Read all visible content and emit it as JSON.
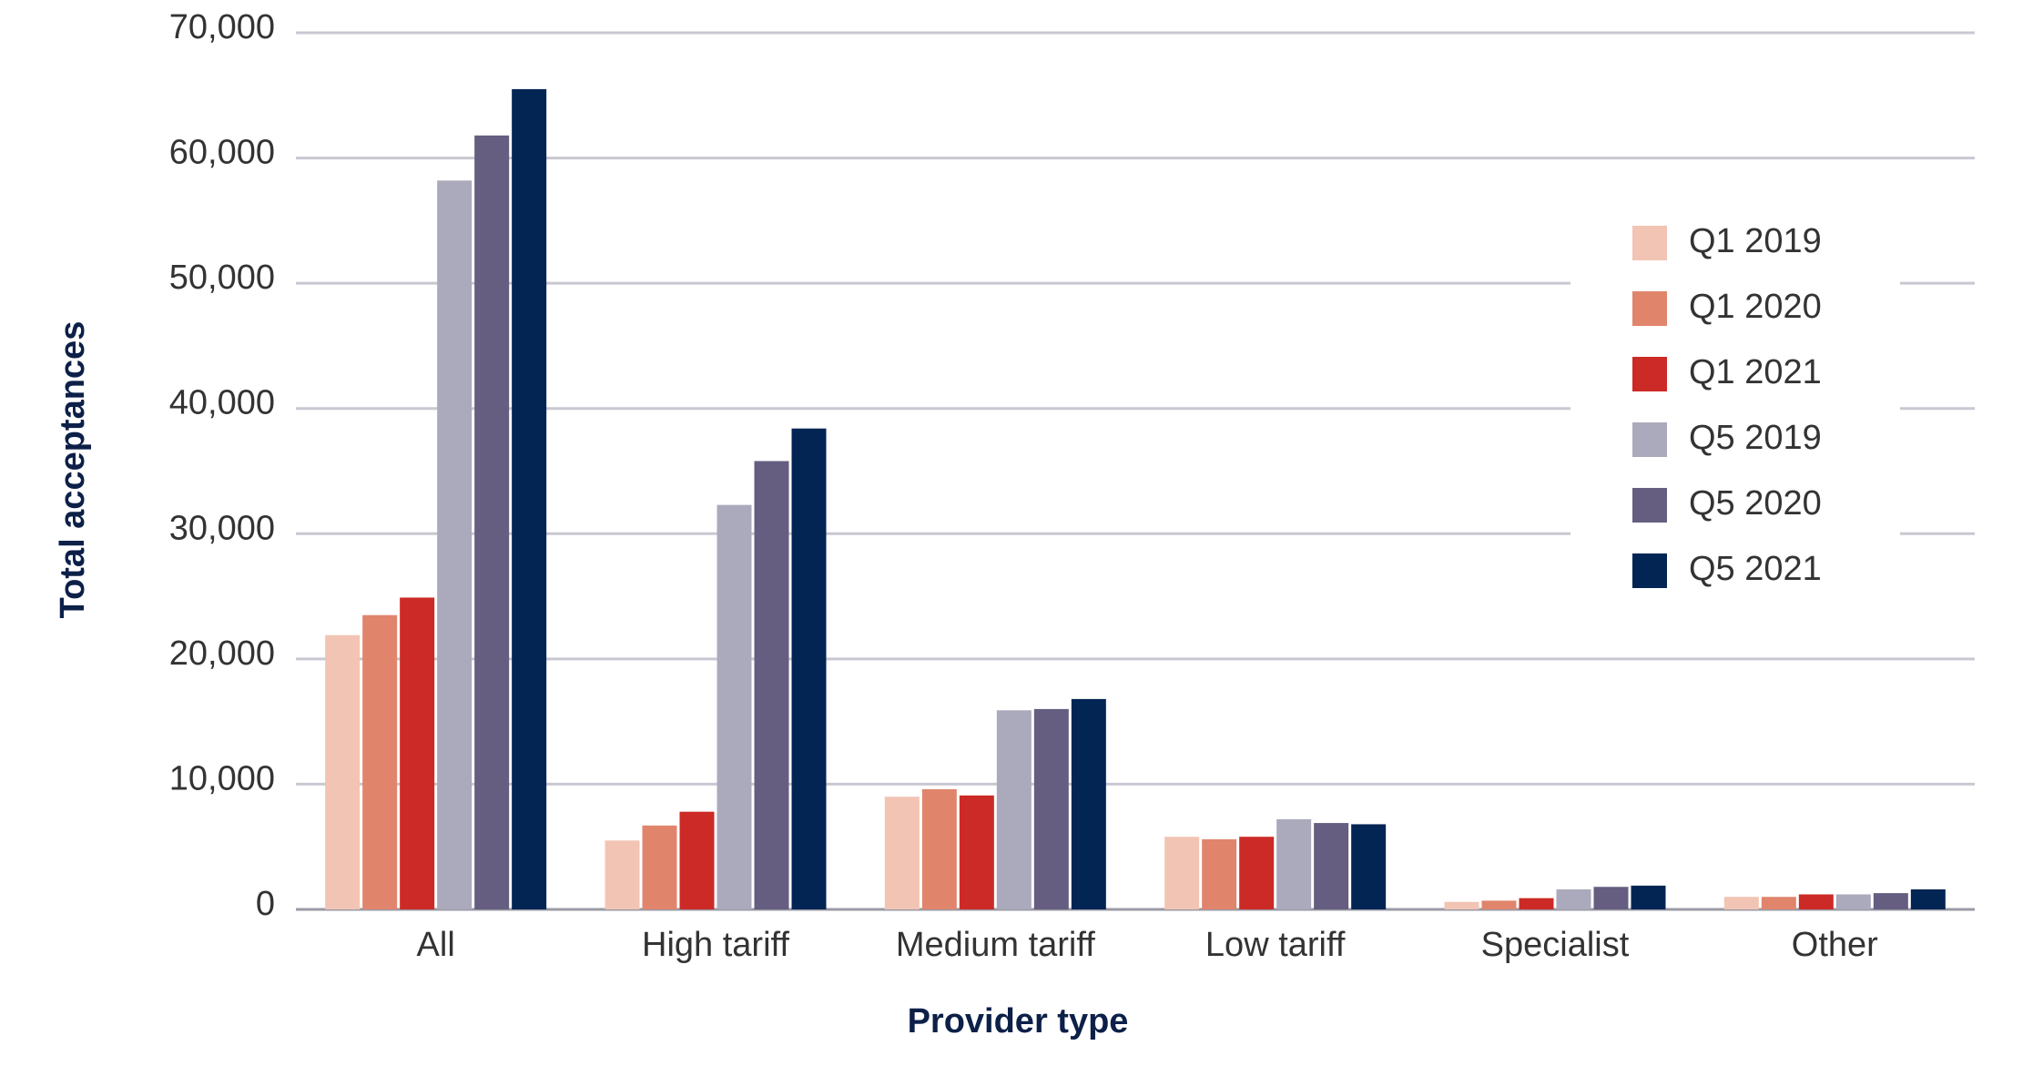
{
  "chart_data": {
    "type": "bar",
    "xlabel": "Provider type",
    "ylabel": "Total acceptances",
    "categories": [
      "All",
      "High tariff",
      "Medium tariff",
      "Low tariff",
      "Specialist",
      "Other"
    ],
    "series": [
      {
        "name": "Q1 2019",
        "color": "#f2c4b4",
        "values": [
          21900,
          5500,
          9000,
          5800,
          600,
          1000
        ]
      },
      {
        "name": "Q1 2020",
        "color": "#e0856c",
        "values": [
          23500,
          6700,
          9600,
          5600,
          700,
          1000
        ]
      },
      {
        "name": "Q1 2021",
        "color": "#cc2a26",
        "values": [
          24900,
          7800,
          9100,
          5800,
          900,
          1200
        ]
      },
      {
        "name": "Q5 2019",
        "color": "#aba9bc",
        "values": [
          58200,
          32300,
          15900,
          7200,
          1600,
          1200
        ]
      },
      {
        "name": "Q5 2020",
        "color": "#655e80",
        "values": [
          61800,
          35800,
          16000,
          6900,
          1800,
          1300
        ]
      },
      {
        "name": "Q5 2021",
        "color": "#032554",
        "values": [
          65500,
          38400,
          16800,
          6800,
          1900,
          1600
        ]
      }
    ],
    "ylim": [
      0,
      70000
    ],
    "yticks": [
      0,
      {
        "value": 10000,
        "label": "10,000"
      },
      {
        "value": 20000,
        "label": "20,000"
      },
      {
        "value": 30000,
        "label": "30,000"
      },
      {
        "value": 40000,
        "label": "40,000"
      },
      {
        "value": 50000,
        "label": "50,000"
      },
      {
        "value": 60000,
        "label": "60,000"
      },
      {
        "value": 70000,
        "label": "70,000"
      }
    ],
    "grid": true,
    "legend": "right"
  }
}
